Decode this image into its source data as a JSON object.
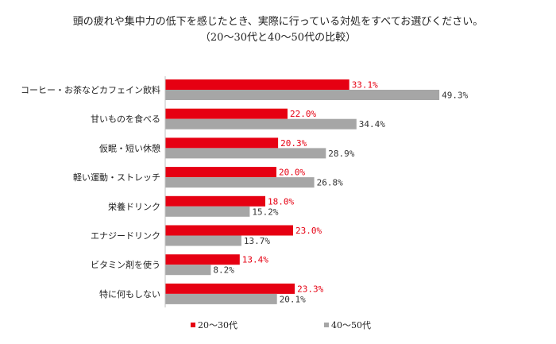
{
  "chart_data": {
    "type": "bar",
    "orientation": "horizontal",
    "title": "頭の疲れや集中力の低下を感じたとき、実際に行っている対処をすべてお選びください。",
    "subtitle": "（20～30代と40～50代の比較）",
    "categories": [
      "コーヒー・お茶などカフェイン飲料",
      "甘いものを食べる",
      "仮眠・短い休憩",
      "軽い運動・ストレッチ",
      "栄養ドリンク",
      "エナジードリンク",
      "ビタミン剤を使う",
      "特に何もしない"
    ],
    "series": [
      {
        "name": "20～30代",
        "values": [
          33.1,
          22.0,
          20.3,
          20.0,
          18.0,
          23.0,
          13.4,
          23.3
        ],
        "labels": [
          "33.1%",
          "22.0%",
          "20.3%",
          "20.0%",
          "18.0%",
          "23.0%",
          "13.4%",
          "23.3%"
        ],
        "color": "#e60012"
      },
      {
        "name": "40～50代",
        "values": [
          49.3,
          34.4,
          28.9,
          26.8,
          15.2,
          13.7,
          8.2,
          20.1
        ],
        "labels": [
          "49.3%",
          "34.4%",
          "28.9%",
          "26.8%",
          "15.2%",
          "13.7%",
          "8.2%",
          "20.1%"
        ],
        "color": "#a6a6a6"
      }
    ],
    "xlim": [
      0,
      60
    ],
    "grid": false,
    "legend_position": "bottom"
  }
}
